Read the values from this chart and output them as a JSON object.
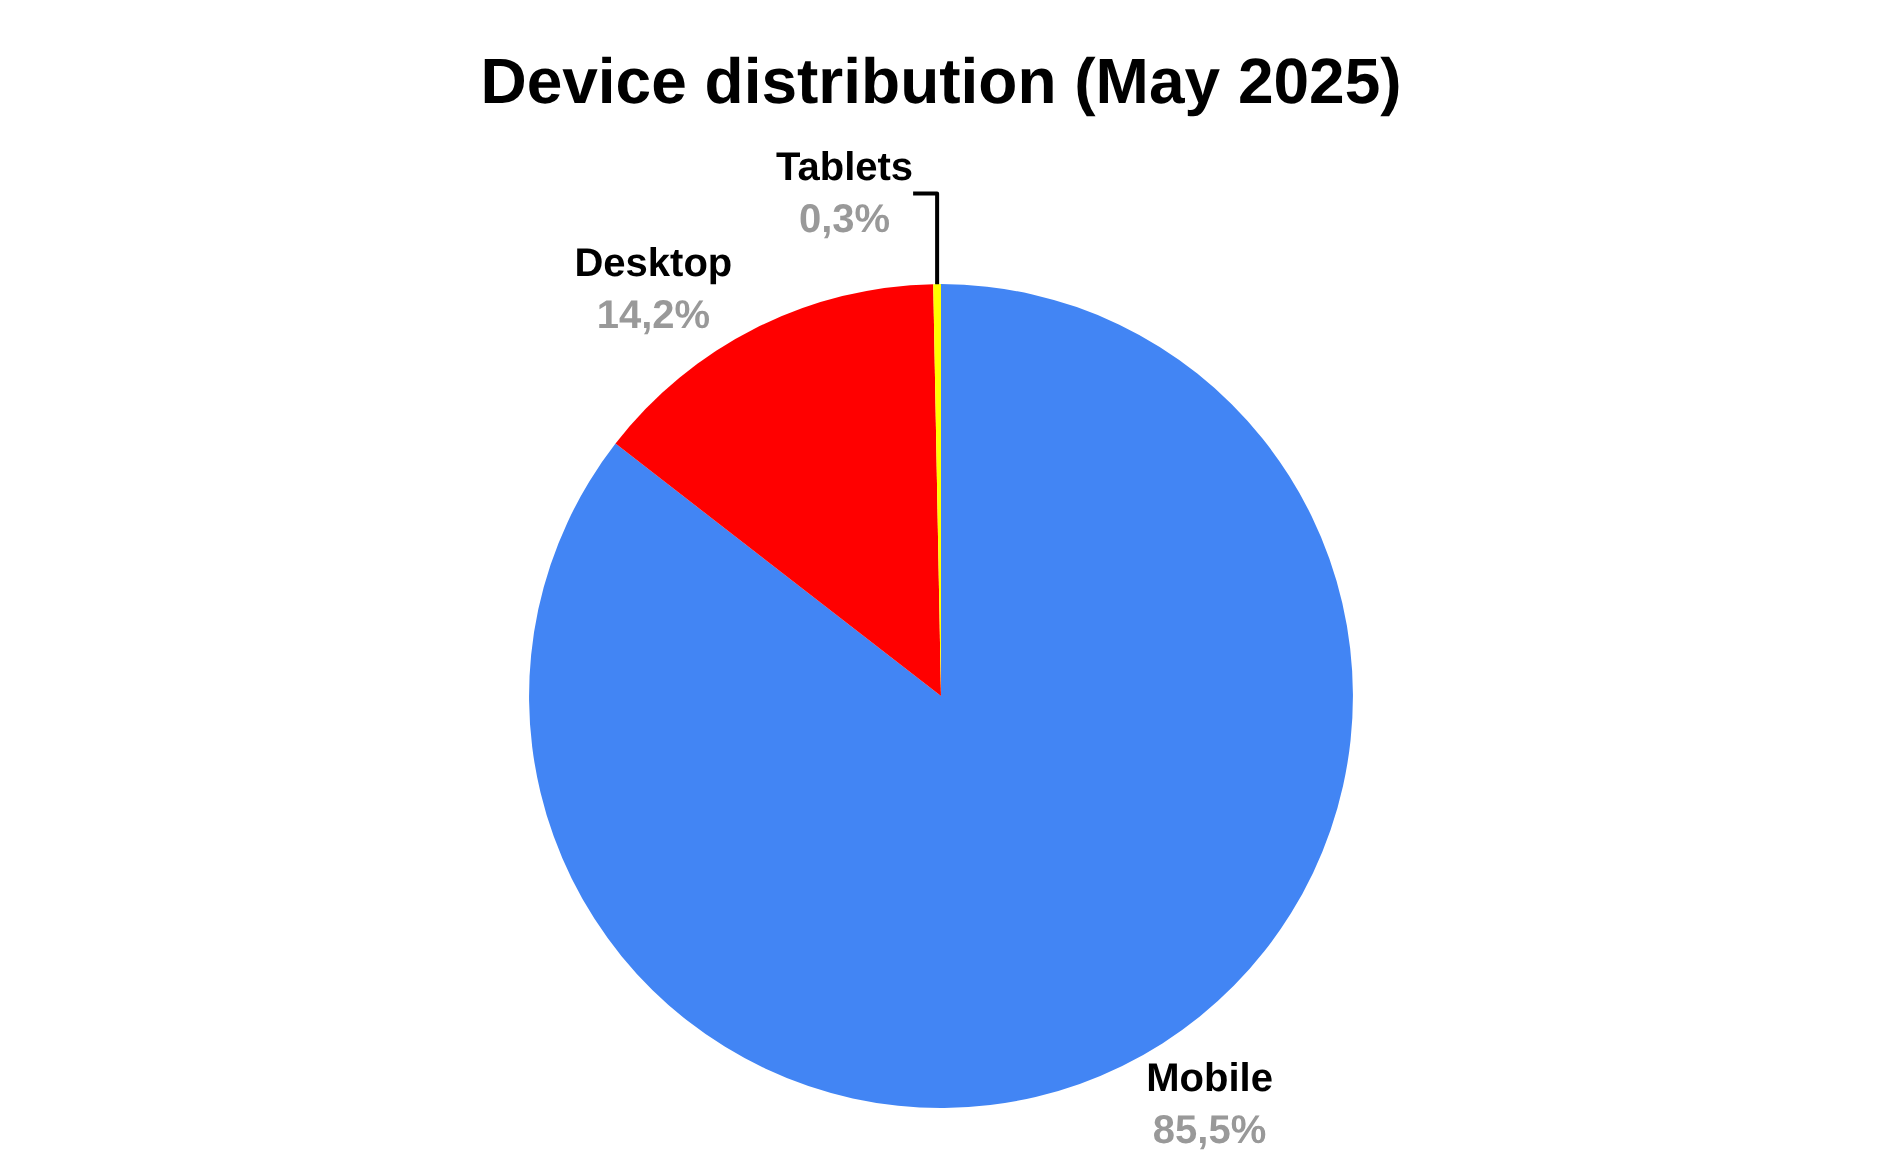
{
  "chart_data": {
    "type": "pie",
    "title": "Device distribution (May 2025)",
    "categories": [
      "Mobile",
      "Desktop",
      "Tablets"
    ],
    "values": [
      85.5,
      14.2,
      0.3
    ],
    "value_labels": [
      "85,5%",
      "14,2%",
      "0,3%"
    ],
    "colors": [
      "#4285f4",
      "#ff0000",
      "#ffff00"
    ],
    "legend": false
  }
}
